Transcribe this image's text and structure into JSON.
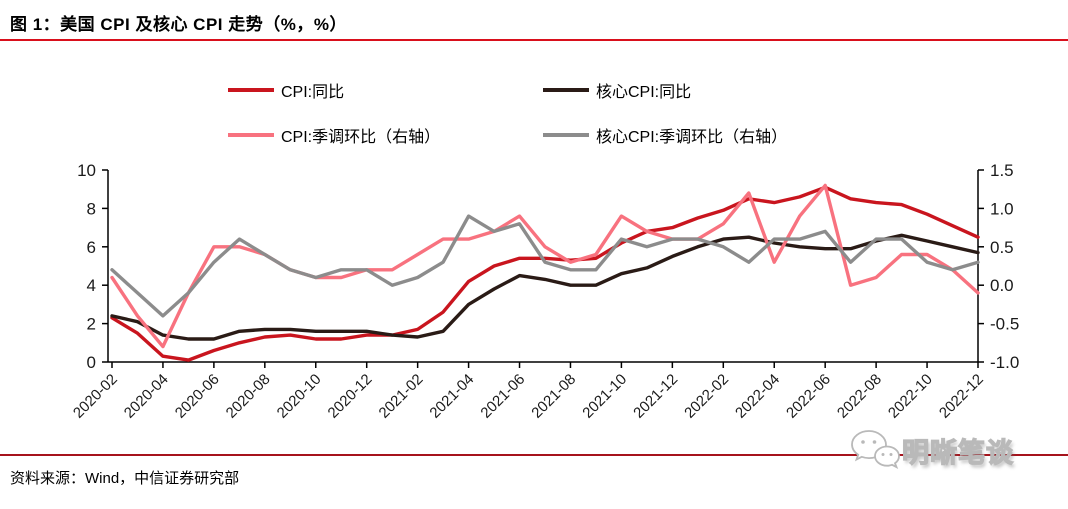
{
  "header": {
    "title": "图 1：美国 CPI 及核心 CPI 走势（%，%）"
  },
  "legend": [
    {
      "id": "cpi-yoy",
      "label": "CPI:同比",
      "color": "#c9151e"
    },
    {
      "id": "core-cpi-yoy",
      "label": "核心CPI:同比",
      "color": "#2a1b16"
    },
    {
      "id": "cpi-mom",
      "label": "CPI:季调环比（右轴）",
      "color": "#f8727f"
    },
    {
      "id": "core-cpi-mom",
      "label": "核心CPI:季调环比（右轴）",
      "color": "#8c8c8c"
    }
  ],
  "footer": {
    "source": "资料来源：Wind，中信证券研究部",
    "watermark": "明晰笔谈"
  },
  "chart_data": {
    "type": "line",
    "grid": false,
    "legend_position": "top",
    "x": [
      "2020-02",
      "2020-03",
      "2020-04",
      "2020-05",
      "2020-06",
      "2020-07",
      "2020-08",
      "2020-09",
      "2020-10",
      "2020-11",
      "2020-12",
      "2021-01",
      "2021-02",
      "2021-03",
      "2021-04",
      "2021-05",
      "2021-06",
      "2021-07",
      "2021-08",
      "2021-09",
      "2021-10",
      "2021-11",
      "2021-12",
      "2022-01",
      "2022-02",
      "2022-03",
      "2022-04",
      "2022-05",
      "2022-06",
      "2022-07",
      "2022-08",
      "2022-09",
      "2022-10",
      "2022-11",
      "2022-12"
    ],
    "x_tick_labels": [
      "2020-02",
      "2020-04",
      "2020-06",
      "2020-08",
      "2020-10",
      "2020-12",
      "2021-02",
      "2021-04",
      "2021-06",
      "2021-08",
      "2021-10",
      "2021-12",
      "2022-02",
      "2022-04",
      "2022-06",
      "2022-08",
      "2022-10",
      "2022-12"
    ],
    "left_axis": {
      "range": [
        0,
        10
      ],
      "ticks": [
        "0",
        "2",
        "4",
        "6",
        "8",
        "10"
      ]
    },
    "right_axis": {
      "range": [
        -1.0,
        1.5
      ],
      "ticks": [
        "-1.0",
        "-0.5",
        "0.0",
        "0.5",
        "1.0",
        "1.5"
      ]
    },
    "series": [
      {
        "id": "cpi-yoy",
        "name": "CPI:同比",
        "axis": "left",
        "color": "#c9151e",
        "values": [
          2.3,
          1.5,
          0.3,
          0.1,
          0.6,
          1.0,
          1.3,
          1.4,
          1.2,
          1.2,
          1.4,
          1.4,
          1.7,
          2.6,
          4.2,
          5.0,
          5.4,
          5.4,
          5.3,
          5.4,
          6.2,
          6.8,
          7.0,
          7.5,
          7.9,
          8.5,
          8.3,
          8.6,
          9.1,
          8.5,
          8.3,
          8.2,
          7.7,
          7.1,
          6.5
        ]
      },
      {
        "id": "core-cpi-yoy",
        "name": "核心CPI:同比",
        "axis": "left",
        "color": "#2a1b16",
        "values": [
          2.4,
          2.1,
          1.4,
          1.2,
          1.2,
          1.6,
          1.7,
          1.7,
          1.6,
          1.6,
          1.6,
          1.4,
          1.3,
          1.6,
          3.0,
          3.8,
          4.5,
          4.3,
          4.0,
          4.0,
          4.6,
          4.9,
          5.5,
          6.0,
          6.4,
          6.5,
          6.2,
          6.0,
          5.9,
          5.9,
          6.3,
          6.6,
          6.3,
          6.0,
          5.7
        ]
      },
      {
        "id": "cpi-mom",
        "name": "CPI:季调环比（右轴）",
        "axis": "right",
        "color": "#f8727f",
        "values": [
          0.1,
          -0.4,
          -0.8,
          -0.1,
          0.5,
          0.5,
          0.4,
          0.2,
          0.1,
          0.1,
          0.2,
          0.2,
          0.4,
          0.6,
          0.6,
          0.7,
          0.9,
          0.5,
          0.3,
          0.4,
          0.9,
          0.7,
          0.6,
          0.6,
          0.8,
          1.2,
          0.3,
          0.9,
          1.3,
          0.0,
          0.1,
          0.4,
          0.4,
          0.2,
          -0.1
        ]
      },
      {
        "id": "core-cpi-mom",
        "name": "核心CPI:季调环比（右轴）",
        "axis": "right",
        "color": "#8c8c8c",
        "values": [
          0.2,
          -0.1,
          -0.4,
          -0.1,
          0.3,
          0.6,
          0.4,
          0.2,
          0.1,
          0.2,
          0.2,
          0.0,
          0.1,
          0.3,
          0.9,
          0.7,
          0.8,
          0.3,
          0.2,
          0.2,
          0.6,
          0.5,
          0.6,
          0.6,
          0.5,
          0.3,
          0.6,
          0.6,
          0.7,
          0.3,
          0.6,
          0.6,
          0.3,
          0.2,
          0.3
        ]
      }
    ]
  }
}
